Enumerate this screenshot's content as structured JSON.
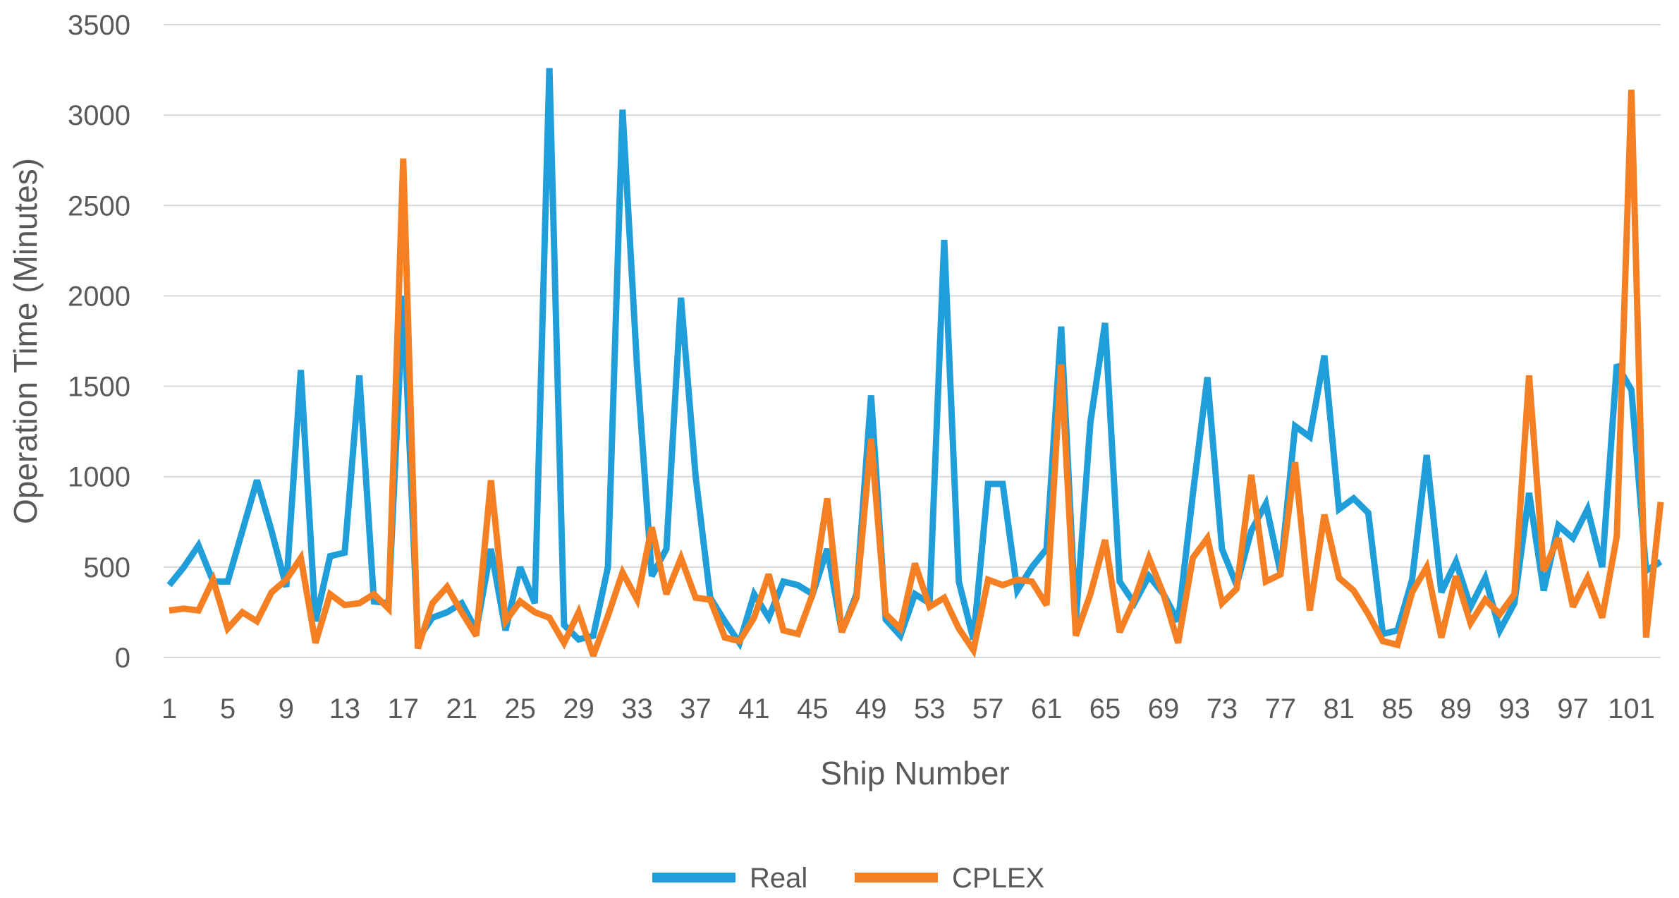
{
  "chart_data": {
    "type": "line",
    "title": "",
    "xlabel": "Ship Number",
    "ylabel": "Operation Time (Minutes)",
    "ylim": [
      0,
      3500
    ],
    "yticks": [
      0,
      500,
      1000,
      1500,
      2000,
      2500,
      3000,
      3500
    ],
    "xtick_labels": [
      "1",
      "5",
      "9",
      "13",
      "17",
      "21",
      "25",
      "29",
      "33",
      "37",
      "41",
      "45",
      "49",
      "53",
      "57",
      "61",
      "65",
      "69",
      "73",
      "77",
      "81",
      "85",
      "89",
      "93",
      "97",
      "101"
    ],
    "grid": "horizontal",
    "legend_position": "bottom",
    "x": [
      1,
      2,
      3,
      4,
      5,
      6,
      7,
      8,
      9,
      10,
      11,
      12,
      13,
      14,
      15,
      16,
      17,
      18,
      19,
      20,
      21,
      22,
      23,
      24,
      25,
      26,
      27,
      28,
      29,
      30,
      31,
      32,
      33,
      34,
      35,
      36,
      37,
      38,
      39,
      40,
      41,
      42,
      43,
      44,
      45,
      46,
      47,
      48,
      49,
      50,
      51,
      52,
      53,
      54,
      55,
      56,
      57,
      58,
      59,
      60,
      61,
      62,
      63,
      64,
      65,
      66,
      67,
      68,
      69,
      70,
      71,
      72,
      73,
      74,
      75,
      76,
      77,
      78,
      79,
      80,
      81,
      82,
      83,
      84,
      85,
      86,
      87,
      88,
      89,
      90,
      91,
      92,
      93,
      94,
      95,
      96,
      97,
      98,
      99,
      100,
      101,
      102,
      103
    ],
    "series": [
      {
        "name": "Real",
        "color": "#1F9ED9",
        "values": [
          400,
          500,
          620,
          420,
          420,
          700,
          980,
          700,
          390,
          1590,
          200,
          560,
          580,
          1560,
          310,
          300,
          2000,
          100,
          220,
          250,
          300,
          150,
          600,
          150,
          500,
          300,
          3260,
          180,
          100,
          120,
          500,
          3030,
          1600,
          450,
          600,
          1990,
          1000,
          330,
          200,
          80,
          350,
          220,
          420,
          400,
          350,
          600,
          140,
          350,
          1450,
          210,
          120,
          350,
          300,
          2310,
          420,
          100,
          960,
          960,
          370,
          500,
          600,
          1830,
          200,
          1300,
          1850,
          420,
          300,
          450,
          350,
          200,
          900,
          1550,
          600,
          400,
          700,
          850,
          470,
          1280,
          1220,
          1670,
          820,
          880,
          800,
          130,
          150,
          430,
          1120,
          360,
          530,
          280,
          440,
          150,
          300,
          910,
          370,
          730,
          660,
          820,
          500,
          1620,
          1480,
          480,
          530
        ]
      },
      {
        "name": "CPLEX",
        "color": "#F58024",
        "values": [
          260,
          270,
          260,
          430,
          160,
          250,
          200,
          360,
          430,
          550,
          80,
          350,
          290,
          300,
          350,
          270,
          2760,
          50,
          300,
          390,
          250,
          120,
          980,
          200,
          310,
          250,
          220,
          80,
          250,
          10,
          230,
          470,
          320,
          720,
          350,
          550,
          330,
          320,
          110,
          90,
          220,
          460,
          150,
          130,
          350,
          880,
          140,
          330,
          1210,
          240,
          160,
          520,
          280,
          330,
          160,
          40,
          430,
          400,
          430,
          420,
          290,
          1620,
          120,
          350,
          650,
          140,
          320,
          550,
          350,
          80,
          550,
          660,
          300,
          380,
          1010,
          420,
          460,
          1080,
          260,
          790,
          440,
          370,
          240,
          90,
          70,
          360,
          500,
          110,
          450,
          190,
          320,
          240,
          350,
          1560,
          480,
          660,
          280,
          440,
          220,
          670,
          3140,
          110,
          860
        ]
      }
    ]
  }
}
